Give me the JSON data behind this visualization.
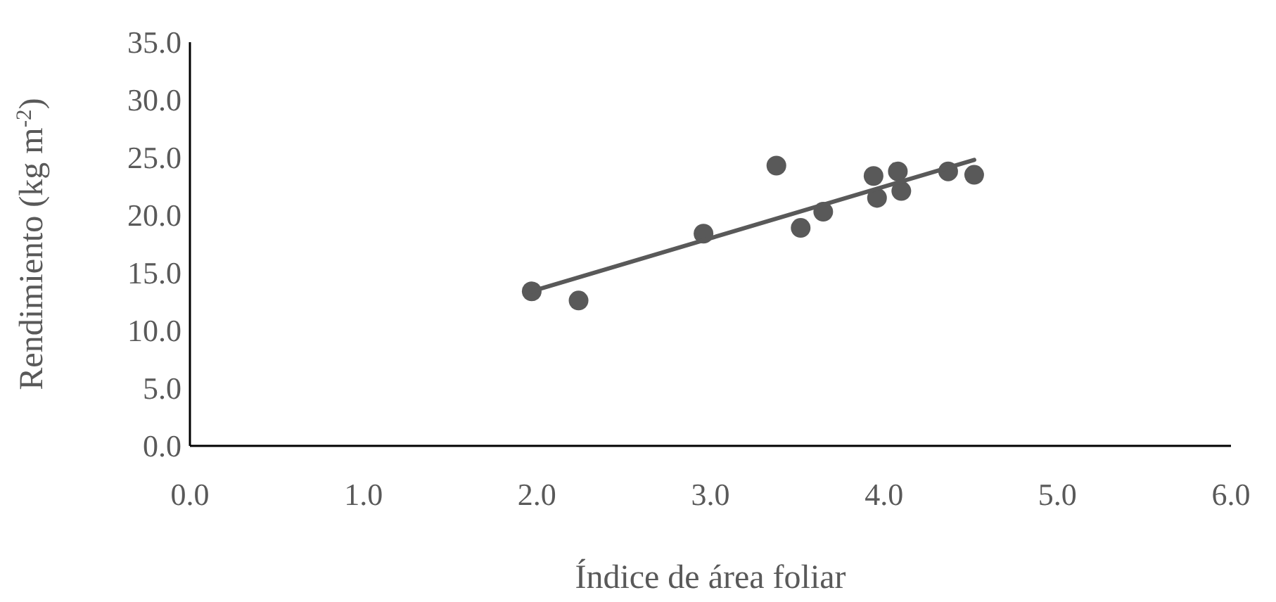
{
  "chart_data": {
    "type": "scatter",
    "xlabel": "Índice de área foliar",
    "ylabel": "Rendimiento (kg m$^{-2}$)",
    "xlim": [
      0,
      6
    ],
    "xticks": [
      {
        "value": 0,
        "label": "0.0"
      },
      {
        "value": 1,
        "label": "1.0"
      },
      {
        "value": 2,
        "label": "2.0"
      },
      {
        "value": 3,
        "label": "3.0"
      },
      {
        "value": 4,
        "label": "4.0"
      },
      {
        "value": 5,
        "label": "5.0"
      },
      {
        "value": 6,
        "label": "6.0"
      }
    ],
    "ylim": [
      0,
      35
    ],
    "yticks": [
      {
        "value": 0,
        "label": "0.0"
      },
      {
        "value": 5,
        "label": "5.0"
      },
      {
        "value": 10,
        "label": "10.0"
      },
      {
        "value": 15,
        "label": "15.0"
      },
      {
        "value": 20,
        "label": "20.0"
      },
      {
        "value": 25,
        "label": "25.0"
      },
      {
        "value": 30,
        "label": "30.0"
      },
      {
        "value": 35,
        "label": "35.0"
      }
    ],
    "grid": false,
    "marker": "circle",
    "series": [
      {
        "color": "#595959",
        "x": [
          1.97,
          2.24,
          2.96,
          3.38,
          3.52,
          3.65,
          3.94,
          3.96,
          4.08,
          4.1,
          4.37,
          4.52
        ],
        "values": [
          13.4,
          12.6,
          18.4,
          24.3,
          18.9,
          20.3,
          23.4,
          21.5,
          23.8,
          22.1,
          23.8,
          23.5
        ]
      },
      {
        "type": "line",
        "color": "#595959",
        "marker": "none",
        "x": [
          1.97,
          4.52
        ],
        "values": [
          13.4,
          24.8
        ]
      }
    ]
  }
}
